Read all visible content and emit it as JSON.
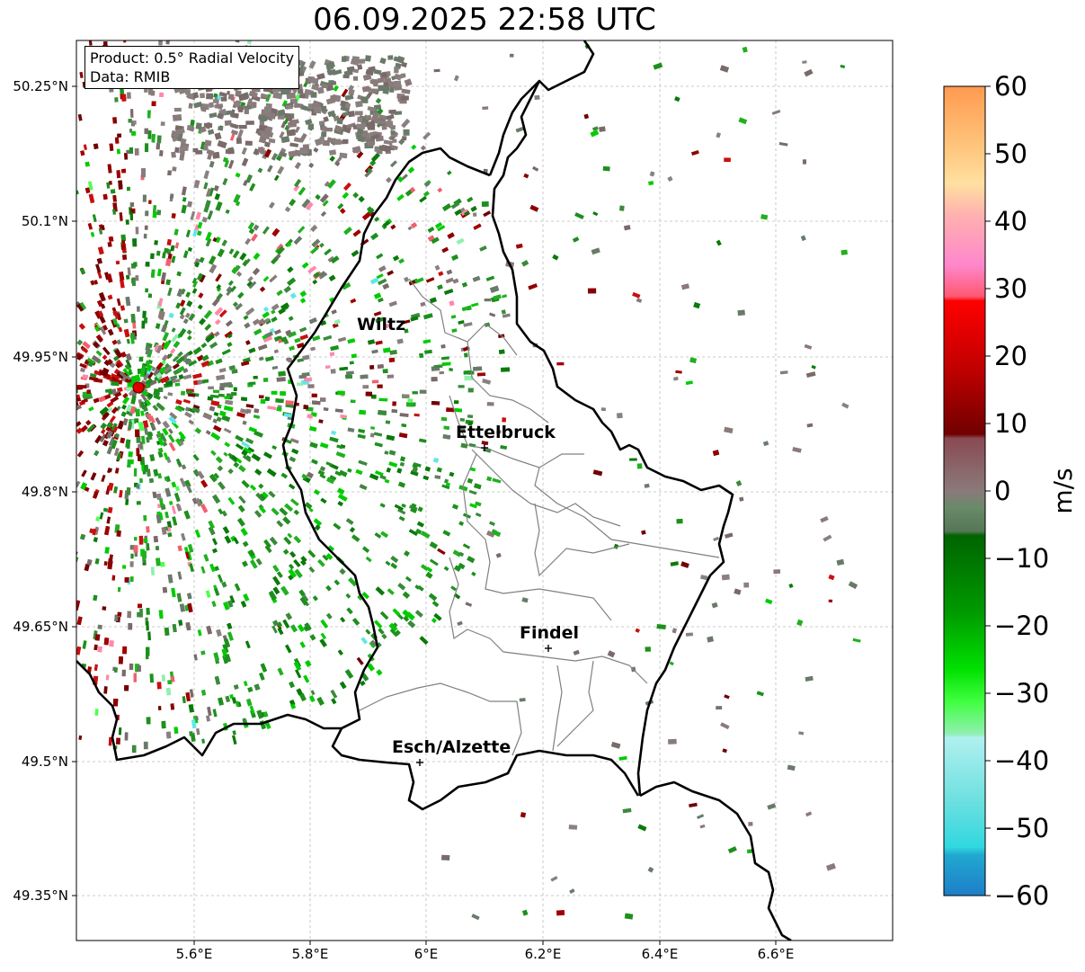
{
  "title": "06.09.2025 22:58 UTC",
  "legend": {
    "product": "Product: 0.5° Radial Velocity",
    "data": "Data: RMIB"
  },
  "axes": {
    "lat_ticks": [
      "50.25°N",
      "50.1°N",
      "49.95°N",
      "49.8°N",
      "49.65°N",
      "49.5°N",
      "49.35°N"
    ],
    "lon_ticks": [
      "5.6°E",
      "5.8°E",
      "6°E",
      "6.2°E",
      "6.4°E",
      "6.6°E"
    ],
    "grid": true
  },
  "cities": [
    {
      "name": "Wiltz"
    },
    {
      "name": "Ettelbruck"
    },
    {
      "name": "Findel"
    },
    {
      "name": "Esch/Alzette"
    }
  ],
  "colorbar": {
    "label": "m/s",
    "ticks": [
      "60",
      "50",
      "40",
      "30",
      "20",
      "10",
      "0",
      "−10",
      "−20",
      "−30",
      "−40",
      "−50",
      "−60"
    ],
    "range": [
      -60,
      60
    ]
  },
  "colors": {
    "inbound_strong": "#00cc00",
    "inbound": "#1e8f1e",
    "near_zero": "#8a7a7a",
    "outbound": "#8b0000",
    "outbound_light": "#f0606e",
    "radar_site": "#e00000",
    "border": "#000000",
    "canton": "#808080"
  }
}
